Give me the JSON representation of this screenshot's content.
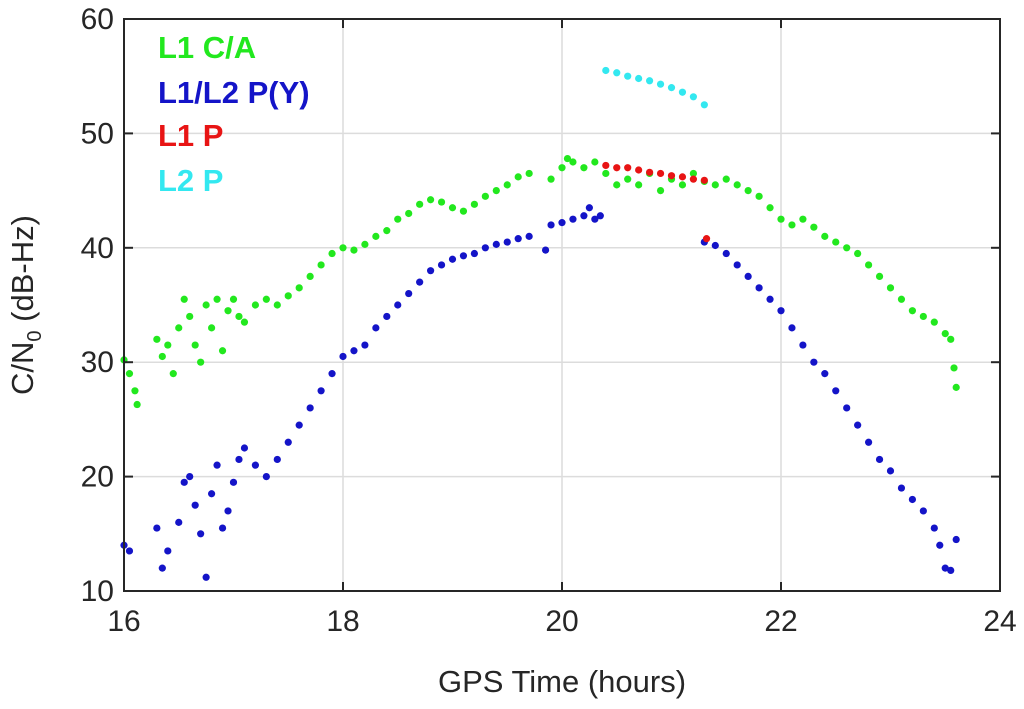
{
  "chart_data": {
    "type": "scatter",
    "xlabel": "GPS Time (hours)",
    "ylabel": "C/N",
    "ylabel_subscript": "0",
    "ylabel_unit": " (dB-Hz)",
    "xlim": [
      16,
      24
    ],
    "ylim": [
      10,
      60
    ],
    "xticks": [
      16,
      18,
      20,
      22,
      24
    ],
    "yticks": [
      10,
      20,
      30,
      40,
      50,
      60
    ],
    "grid": true,
    "legend_position": "top-left",
    "series": [
      {
        "name": "L1 C/A",
        "color": "#22e81e",
        "points": [
          [
            16.0,
            30.2
          ],
          [
            16.05,
            29.0
          ],
          [
            16.1,
            27.5
          ],
          [
            16.12,
            26.3
          ],
          [
            16.3,
            32.0
          ],
          [
            16.35,
            30.5
          ],
          [
            16.4,
            31.5
          ],
          [
            16.45,
            29.0
          ],
          [
            16.5,
            33.0
          ],
          [
            16.55,
            35.5
          ],
          [
            16.6,
            34.0
          ],
          [
            16.65,
            31.5
          ],
          [
            16.7,
            30.0
          ],
          [
            16.75,
            35.0
          ],
          [
            16.8,
            33.0
          ],
          [
            16.85,
            35.5
          ],
          [
            16.9,
            31.0
          ],
          [
            16.95,
            34.5
          ],
          [
            17.0,
            35.5
          ],
          [
            17.05,
            34.0
          ],
          [
            17.1,
            33.5
          ],
          [
            17.2,
            35.0
          ],
          [
            17.3,
            35.5
          ],
          [
            17.4,
            35.0
          ],
          [
            17.5,
            35.8
          ],
          [
            17.6,
            36.5
          ],
          [
            17.7,
            37.5
          ],
          [
            17.8,
            38.5
          ],
          [
            17.9,
            39.5
          ],
          [
            18.0,
            40.0
          ],
          [
            18.1,
            39.8
          ],
          [
            18.2,
            40.3
          ],
          [
            18.3,
            41.0
          ],
          [
            18.4,
            41.5
          ],
          [
            18.5,
            42.5
          ],
          [
            18.6,
            43.0
          ],
          [
            18.7,
            43.8
          ],
          [
            18.8,
            44.2
          ],
          [
            18.9,
            44.0
          ],
          [
            19.0,
            43.5
          ],
          [
            19.1,
            43.2
          ],
          [
            19.2,
            43.8
          ],
          [
            19.3,
            44.5
          ],
          [
            19.4,
            45.0
          ],
          [
            19.5,
            45.5
          ],
          [
            19.6,
            46.2
          ],
          [
            19.7,
            46.5
          ],
          [
            19.9,
            46.0
          ],
          [
            20.0,
            47.0
          ],
          [
            20.05,
            47.8
          ],
          [
            20.1,
            47.5
          ],
          [
            20.2,
            47.0
          ],
          [
            20.3,
            47.5
          ],
          [
            20.4,
            46.5
          ],
          [
            20.5,
            45.5
          ],
          [
            20.6,
            46.0
          ],
          [
            20.7,
            45.5
          ],
          [
            20.8,
            46.5
          ],
          [
            20.9,
            45.0
          ],
          [
            21.0,
            46.0
          ],
          [
            21.1,
            45.5
          ],
          [
            21.2,
            46.5
          ],
          [
            21.3,
            45.8
          ],
          [
            21.4,
            45.5
          ],
          [
            21.5,
            46.0
          ],
          [
            21.6,
            45.5
          ],
          [
            21.7,
            45.0
          ],
          [
            21.8,
            44.5
          ],
          [
            21.9,
            43.5
          ],
          [
            22.0,
            42.5
          ],
          [
            22.1,
            42.0
          ],
          [
            22.2,
            42.5
          ],
          [
            22.3,
            41.8
          ],
          [
            22.4,
            41.0
          ],
          [
            22.5,
            40.5
          ],
          [
            22.6,
            40.0
          ],
          [
            22.7,
            39.5
          ],
          [
            22.8,
            38.5
          ],
          [
            22.9,
            37.5
          ],
          [
            23.0,
            36.5
          ],
          [
            23.1,
            35.5
          ],
          [
            23.2,
            34.5
          ],
          [
            23.3,
            34.0
          ],
          [
            23.4,
            33.5
          ],
          [
            23.5,
            32.5
          ],
          [
            23.55,
            32.0
          ],
          [
            23.58,
            29.5
          ],
          [
            23.6,
            27.8
          ]
        ]
      },
      {
        "name": "L1/L2 P(Y)",
        "color": "#1414c8",
        "points": [
          [
            16.0,
            14.0
          ],
          [
            16.05,
            13.5
          ],
          [
            16.3,
            15.5
          ],
          [
            16.35,
            12.0
          ],
          [
            16.4,
            13.5
          ],
          [
            16.5,
            16.0
          ],
          [
            16.55,
            19.5
          ],
          [
            16.6,
            20.0
          ],
          [
            16.65,
            17.5
          ],
          [
            16.7,
            15.0
          ],
          [
            16.75,
            11.2
          ],
          [
            16.8,
            18.5
          ],
          [
            16.85,
            21.0
          ],
          [
            16.9,
            15.5
          ],
          [
            16.95,
            17.0
          ],
          [
            17.0,
            19.5
          ],
          [
            17.05,
            21.5
          ],
          [
            17.1,
            22.5
          ],
          [
            17.2,
            21.0
          ],
          [
            17.3,
            20.0
          ],
          [
            17.4,
            21.5
          ],
          [
            17.5,
            23.0
          ],
          [
            17.6,
            24.5
          ],
          [
            17.7,
            26.0
          ],
          [
            17.8,
            27.5
          ],
          [
            17.9,
            29.0
          ],
          [
            18.0,
            30.5
          ],
          [
            18.1,
            31.0
          ],
          [
            18.2,
            31.5
          ],
          [
            18.3,
            33.0
          ],
          [
            18.4,
            34.0
          ],
          [
            18.5,
            35.0
          ],
          [
            18.6,
            36.0
          ],
          [
            18.7,
            37.0
          ],
          [
            18.8,
            38.0
          ],
          [
            18.9,
            38.5
          ],
          [
            19.0,
            39.0
          ],
          [
            19.1,
            39.3
          ],
          [
            19.2,
            39.5
          ],
          [
            19.3,
            40.0
          ],
          [
            19.4,
            40.3
          ],
          [
            19.5,
            40.5
          ],
          [
            19.6,
            40.8
          ],
          [
            19.7,
            41.0
          ],
          [
            19.85,
            39.8
          ],
          [
            19.9,
            42.0
          ],
          [
            20.0,
            42.2
          ],
          [
            20.1,
            42.5
          ],
          [
            20.2,
            42.8
          ],
          [
            20.25,
            43.5
          ],
          [
            20.3,
            42.5
          ],
          [
            20.35,
            42.8
          ],
          [
            21.3,
            40.5
          ],
          [
            21.4,
            40.2
          ],
          [
            21.5,
            39.5
          ],
          [
            21.6,
            38.5
          ],
          [
            21.7,
            37.5
          ],
          [
            21.8,
            36.5
          ],
          [
            21.9,
            35.5
          ],
          [
            22.0,
            34.5
          ],
          [
            22.1,
            33.0
          ],
          [
            22.2,
            31.5
          ],
          [
            22.3,
            30.0
          ],
          [
            22.4,
            29.0
          ],
          [
            22.5,
            27.5
          ],
          [
            22.6,
            26.0
          ],
          [
            22.7,
            24.5
          ],
          [
            22.8,
            23.0
          ],
          [
            22.9,
            21.5
          ],
          [
            23.0,
            20.5
          ],
          [
            23.1,
            19.0
          ],
          [
            23.2,
            18.0
          ],
          [
            23.3,
            17.0
          ],
          [
            23.4,
            15.5
          ],
          [
            23.45,
            14.0
          ],
          [
            23.5,
            12.0
          ],
          [
            23.55,
            11.8
          ],
          [
            23.6,
            14.5
          ]
        ]
      },
      {
        "name": "L1 P",
        "color": "#e81414",
        "points": [
          [
            20.4,
            47.2
          ],
          [
            20.5,
            47.0
          ],
          [
            20.6,
            47.0
          ],
          [
            20.7,
            46.8
          ],
          [
            20.8,
            46.6
          ],
          [
            20.9,
            46.5
          ],
          [
            21.0,
            46.3
          ],
          [
            21.1,
            46.2
          ],
          [
            21.2,
            46.0
          ],
          [
            21.3,
            45.9
          ],
          [
            21.32,
            40.8
          ]
        ]
      },
      {
        "name": "L2 P",
        "color": "#33e8f0",
        "points": [
          [
            20.4,
            55.5
          ],
          [
            20.5,
            55.3
          ],
          [
            20.6,
            55.0
          ],
          [
            20.7,
            54.8
          ],
          [
            20.8,
            54.6
          ],
          [
            20.9,
            54.3
          ],
          [
            21.0,
            54.0
          ],
          [
            21.1,
            53.6
          ],
          [
            21.2,
            53.2
          ],
          [
            21.3,
            52.5
          ]
        ]
      }
    ]
  }
}
